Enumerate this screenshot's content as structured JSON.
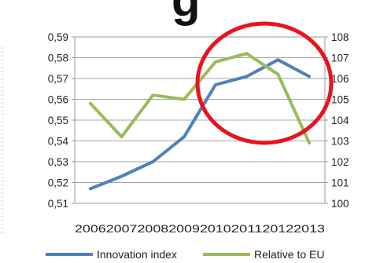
{
  "chart_data": {
    "type": "line",
    "title_fragment": "g",
    "categories": [
      "2006",
      "2007",
      "2008",
      "2009",
      "2010",
      "2011",
      "2012",
      "2013"
    ],
    "y_left": {
      "ticks": [
        "0,59",
        "0,58",
        "0,57",
        "0,56",
        "0,55",
        "0,54",
        "0,53",
        "0,52",
        "0,51"
      ],
      "range": [
        0.51,
        0.59
      ]
    },
    "y_right": {
      "ticks": [
        "108",
        "107",
        "106",
        "105",
        "104",
        "103",
        "102",
        "101",
        "100"
      ],
      "range": [
        100,
        108
      ]
    },
    "grid": true,
    "legend_position": "bottom",
    "series": [
      {
        "name": "Innovation index",
        "axis": "left",
        "color": "#4f81bd",
        "values": [
          0.517,
          0.523,
          0.53,
          0.542,
          0.567,
          0.571,
          0.579,
          0.571
        ]
      },
      {
        "name": "Relative to EU",
        "axis": "right",
        "color": "#9bbb59",
        "values": [
          104.8,
          103.2,
          105.2,
          105.0,
          106.8,
          107.2,
          106.2,
          102.9
        ]
      }
    ],
    "annotation": {
      "shape": "circle",
      "color": "#e8141c"
    }
  }
}
